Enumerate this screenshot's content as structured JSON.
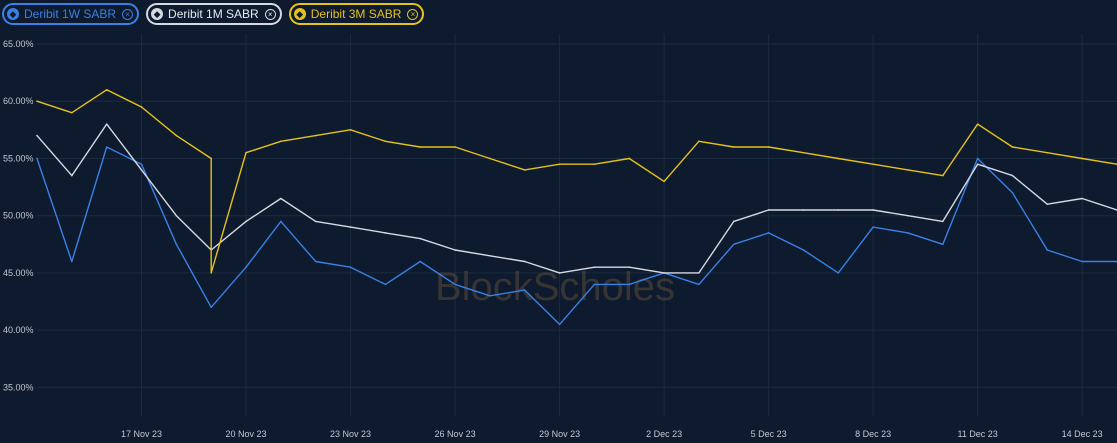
{
  "legend": [
    {
      "label": "Deribit 1W SABR",
      "color": "#3a80e6"
    },
    {
      "label": "Deribit 1M SABR",
      "color": "#d6dae0"
    },
    {
      "label": "Deribit 3M SABR",
      "color": "#e6c21a"
    }
  ],
  "watermark": "BlockScholes",
  "chart_data": {
    "type": "line",
    "title": "",
    "xlabel": "",
    "ylabel": "",
    "ylim": [
      32.5,
      65
    ],
    "yticks": [
      "65.00%",
      "60.00%",
      "55.00%",
      "50.00%",
      "45.00%",
      "40.00%",
      "35.00%"
    ],
    "ytick_values": [
      65,
      60,
      55,
      50,
      45,
      40,
      35
    ],
    "x_start": "14 Nov 23",
    "x_end": "15 Dec 23",
    "xticks": [
      "17 Nov 23",
      "20 Nov 23",
      "23 Nov 23",
      "26 Nov 23",
      "29 Nov 23",
      "2 Dec 23",
      "5 Dec 23",
      "8 Dec 23",
      "11 Dec 23",
      "14 Dec 23"
    ],
    "grid": true,
    "legend_position": "top-left",
    "series": [
      {
        "name": "Deribit 1W SABR",
        "color": "#3a80e6",
        "x": [
          "14 Nov 23",
          "15 Nov 23",
          "16 Nov 23",
          "17 Nov 23",
          "18 Nov 23",
          "19 Nov 23",
          "20 Nov 23",
          "21 Nov 23",
          "22 Nov 23",
          "23 Nov 23",
          "24 Nov 23",
          "25 Nov 23",
          "26 Nov 23",
          "27 Nov 23",
          "28 Nov 23",
          "29 Nov 23",
          "30 Nov 23",
          "1 Dec 23",
          "2 Dec 23",
          "3 Dec 23",
          "4 Dec 23",
          "5 Dec 23",
          "6 Dec 23",
          "7 Dec 23",
          "8 Dec 23",
          "9 Dec 23",
          "10 Dec 23",
          "11 Dec 23",
          "12 Dec 23",
          "13 Dec 23",
          "14 Dec 23",
          "15 Dec 23"
        ],
        "values": [
          55.0,
          46.0,
          56.0,
          54.5,
          47.5,
          42.0,
          45.5,
          49.5,
          46.0,
          45.5,
          44.0,
          46.0,
          44.0,
          43.0,
          43.5,
          40.5,
          44.0,
          44.0,
          45.0,
          44.0,
          47.5,
          48.5,
          47.0,
          45.0,
          49.0,
          48.5,
          47.5,
          55.0,
          52.0,
          47.0,
          46.0,
          46.0
        ]
      },
      {
        "name": "Deribit 1M SABR",
        "color": "#d6dae0",
        "x": [
          "14 Nov 23",
          "15 Nov 23",
          "16 Nov 23",
          "17 Nov 23",
          "18 Nov 23",
          "19 Nov 23",
          "20 Nov 23",
          "21 Nov 23",
          "22 Nov 23",
          "23 Nov 23",
          "24 Nov 23",
          "25 Nov 23",
          "26 Nov 23",
          "27 Nov 23",
          "28 Nov 23",
          "29 Nov 23",
          "30 Nov 23",
          "1 Dec 23",
          "2 Dec 23",
          "3 Dec 23",
          "4 Dec 23",
          "5 Dec 23",
          "6 Dec 23",
          "7 Dec 23",
          "8 Dec 23",
          "9 Dec 23",
          "10 Dec 23",
          "11 Dec 23",
          "12 Dec 23",
          "13 Dec 23",
          "14 Dec 23",
          "15 Dec 23"
        ],
        "values": [
          57.0,
          53.5,
          58.0,
          54.0,
          50.0,
          47.0,
          49.5,
          51.5,
          49.5,
          49.0,
          48.5,
          48.0,
          47.0,
          46.5,
          46.0,
          45.0,
          45.5,
          45.5,
          45.0,
          45.0,
          49.5,
          50.5,
          50.5,
          50.5,
          50.5,
          50.0,
          49.5,
          54.5,
          53.5,
          51.0,
          51.5,
          50.5
        ]
      },
      {
        "name": "Deribit 3M SABR",
        "color": "#e6c21a",
        "x": [
          "14 Nov 23",
          "15 Nov 23",
          "16 Nov 23",
          "17 Nov 23",
          "18 Nov 23",
          "19 Nov 23",
          "19 Nov 23",
          "20 Nov 23",
          "21 Nov 23",
          "22 Nov 23",
          "23 Nov 23",
          "24 Nov 23",
          "25 Nov 23",
          "26 Nov 23",
          "27 Nov 23",
          "28 Nov 23",
          "29 Nov 23",
          "30 Nov 23",
          "1 Dec 23",
          "2 Dec 23",
          "3 Dec 23",
          "4 Dec 23",
          "5 Dec 23",
          "6 Dec 23",
          "7 Dec 23",
          "8 Dec 23",
          "9 Dec 23",
          "10 Dec 23",
          "11 Dec 23",
          "12 Dec 23",
          "13 Dec 23",
          "14 Dec 23",
          "15 Dec 23"
        ],
        "values": [
          60.0,
          59.0,
          61.0,
          59.5,
          57.0,
          55.0,
          45.0,
          55.5,
          56.5,
          57.0,
          57.5,
          56.5,
          56.0,
          56.0,
          55.0,
          54.0,
          54.5,
          54.5,
          55.0,
          53.0,
          56.5,
          56.0,
          56.0,
          55.5,
          55.0,
          54.5,
          54.0,
          53.5,
          58.0,
          56.0,
          55.5,
          55.0,
          54.5
        ]
      }
    ]
  }
}
